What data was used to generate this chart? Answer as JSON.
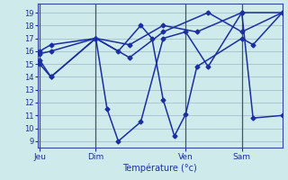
{
  "xlabel": "Température (°c)",
  "ylim": [
    8.5,
    19.7
  ],
  "yticks": [
    9,
    10,
    11,
    12,
    13,
    14,
    15,
    16,
    17,
    18,
    19
  ],
  "background_color": "#ceeaea",
  "grid_color": "#a0b8c8",
  "line_color": "#1a2fa0",
  "day_vlines_x": [
    0.0,
    2.5,
    6.5,
    9.0
  ],
  "xlabels": [
    "Jeu",
    "Dim",
    "Ven",
    "Sam"
  ],
  "xlim": [
    -0.1,
    10.8
  ],
  "series": [
    {
      "x": [
        0.0,
        0.5,
        2.5,
        3.0,
        3.5,
        4.5,
        5.5,
        6.5,
        7.5,
        9.0,
        10.8
      ],
      "y": [
        15.3,
        14.0,
        17.0,
        11.5,
        9.0,
        10.5,
        17.0,
        17.5,
        14.8,
        19.0,
        19.0
      ]
    },
    {
      "x": [
        0.0,
        0.5,
        2.5,
        3.5,
        4.5,
        5.0,
        5.5,
        6.0,
        6.5,
        7.0,
        9.0,
        9.5,
        10.8
      ],
      "y": [
        15.0,
        14.0,
        17.0,
        16.0,
        18.0,
        17.0,
        12.2,
        9.4,
        11.1,
        14.8,
        17.0,
        16.5,
        19.0
      ]
    },
    {
      "x": [
        0.0,
        0.5,
        2.5,
        4.0,
        5.5,
        7.5,
        9.0,
        10.8
      ],
      "y": [
        15.8,
        16.0,
        17.0,
        15.5,
        17.5,
        19.0,
        17.5,
        19.0
      ]
    },
    {
      "x": [
        0.0,
        0.5,
        2.5,
        4.0,
        5.5,
        7.0,
        9.0,
        9.5,
        10.8
      ],
      "y": [
        16.0,
        16.5,
        17.0,
        16.5,
        18.0,
        17.5,
        19.0,
        10.8,
        11.0
      ]
    }
  ]
}
